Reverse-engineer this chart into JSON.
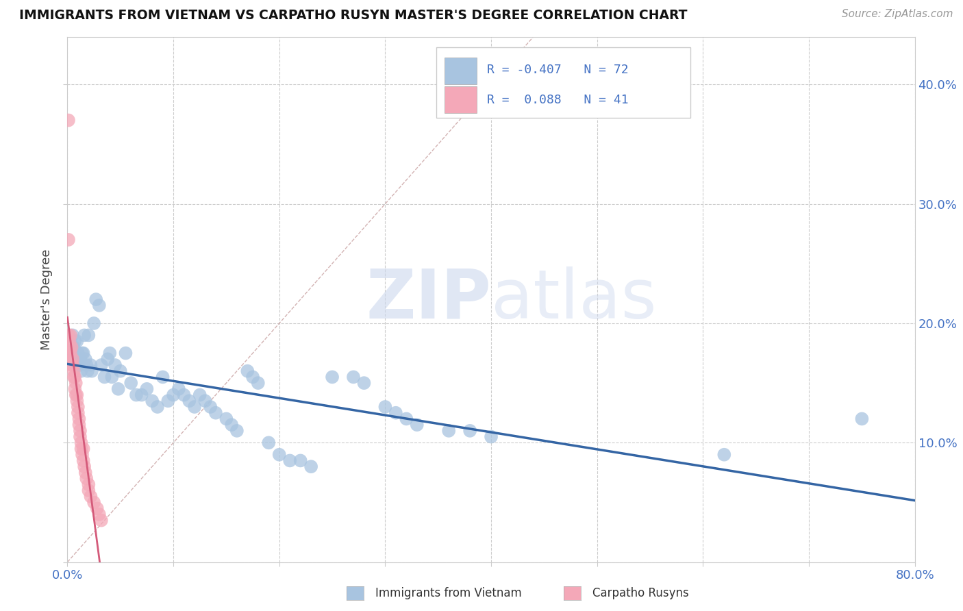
{
  "title": "IMMIGRANTS FROM VIETNAM VS CARPATHO RUSYN MASTER'S DEGREE CORRELATION CHART",
  "source": "Source: ZipAtlas.com",
  "ylabel": "Master's Degree",
  "xlim": [
    0.0,
    0.8
  ],
  "ylim": [
    0.0,
    0.44
  ],
  "vietnam_R": -0.407,
  "vietnam_N": 72,
  "carpatho_R": 0.088,
  "carpatho_N": 41,
  "vietnam_color": "#a8c4e0",
  "carpatho_color": "#f4a8b8",
  "vietnam_line_color": "#3465a4",
  "carpatho_line_color": "#d45a7a",
  "diagonal_color": "#ccaaaa",
  "watermark_color": "#ccd8ee",
  "vietnam_x": [
    0.005,
    0.005,
    0.006,
    0.007,
    0.007,
    0.008,
    0.009,
    0.01,
    0.011,
    0.012,
    0.013,
    0.014,
    0.015,
    0.016,
    0.017,
    0.018,
    0.019,
    0.02,
    0.022,
    0.023,
    0.025,
    0.027,
    0.03,
    0.032,
    0.035,
    0.038,
    0.04,
    0.042,
    0.045,
    0.048,
    0.05,
    0.055,
    0.06,
    0.065,
    0.07,
    0.075,
    0.08,
    0.085,
    0.09,
    0.095,
    0.1,
    0.105,
    0.11,
    0.115,
    0.12,
    0.125,
    0.13,
    0.135,
    0.14,
    0.15,
    0.155,
    0.16,
    0.17,
    0.175,
    0.18,
    0.19,
    0.2,
    0.21,
    0.22,
    0.23,
    0.25,
    0.27,
    0.28,
    0.3,
    0.31,
    0.32,
    0.33,
    0.36,
    0.38,
    0.4,
    0.62,
    0.75
  ],
  "vietnam_y": [
    0.175,
    0.19,
    0.18,
    0.17,
    0.185,
    0.165,
    0.185,
    0.175,
    0.165,
    0.17,
    0.16,
    0.175,
    0.175,
    0.19,
    0.17,
    0.165,
    0.16,
    0.19,
    0.165,
    0.16,
    0.2,
    0.22,
    0.215,
    0.165,
    0.155,
    0.17,
    0.175,
    0.155,
    0.165,
    0.145,
    0.16,
    0.175,
    0.15,
    0.14,
    0.14,
    0.145,
    0.135,
    0.13,
    0.155,
    0.135,
    0.14,
    0.145,
    0.14,
    0.135,
    0.13,
    0.14,
    0.135,
    0.13,
    0.125,
    0.12,
    0.115,
    0.11,
    0.16,
    0.155,
    0.15,
    0.1,
    0.09,
    0.085,
    0.085,
    0.08,
    0.155,
    0.155,
    0.15,
    0.13,
    0.125,
    0.12,
    0.115,
    0.11,
    0.11,
    0.105,
    0.09,
    0.12
  ],
  "carpatho_x": [
    0.001,
    0.001,
    0.002,
    0.002,
    0.003,
    0.003,
    0.004,
    0.004,
    0.005,
    0.005,
    0.006,
    0.006,
    0.007,
    0.007,
    0.008,
    0.008,
    0.009,
    0.009,
    0.01,
    0.01,
    0.011,
    0.011,
    0.012,
    0.012,
    0.013,
    0.013,
    0.014,
    0.015,
    0.015,
    0.016,
    0.017,
    0.018,
    0.02,
    0.02,
    0.022,
    0.025,
    0.028,
    0.03,
    0.032,
    0.001,
    0.001
  ],
  "carpatho_y": [
    0.175,
    0.19,
    0.185,
    0.18,
    0.175,
    0.19,
    0.18,
    0.165,
    0.17,
    0.165,
    0.16,
    0.155,
    0.155,
    0.145,
    0.15,
    0.14,
    0.14,
    0.135,
    0.13,
    0.125,
    0.12,
    0.115,
    0.11,
    0.105,
    0.1,
    0.095,
    0.09,
    0.085,
    0.095,
    0.08,
    0.075,
    0.07,
    0.065,
    0.06,
    0.055,
    0.05,
    0.045,
    0.04,
    0.035,
    0.37,
    0.27
  ]
}
